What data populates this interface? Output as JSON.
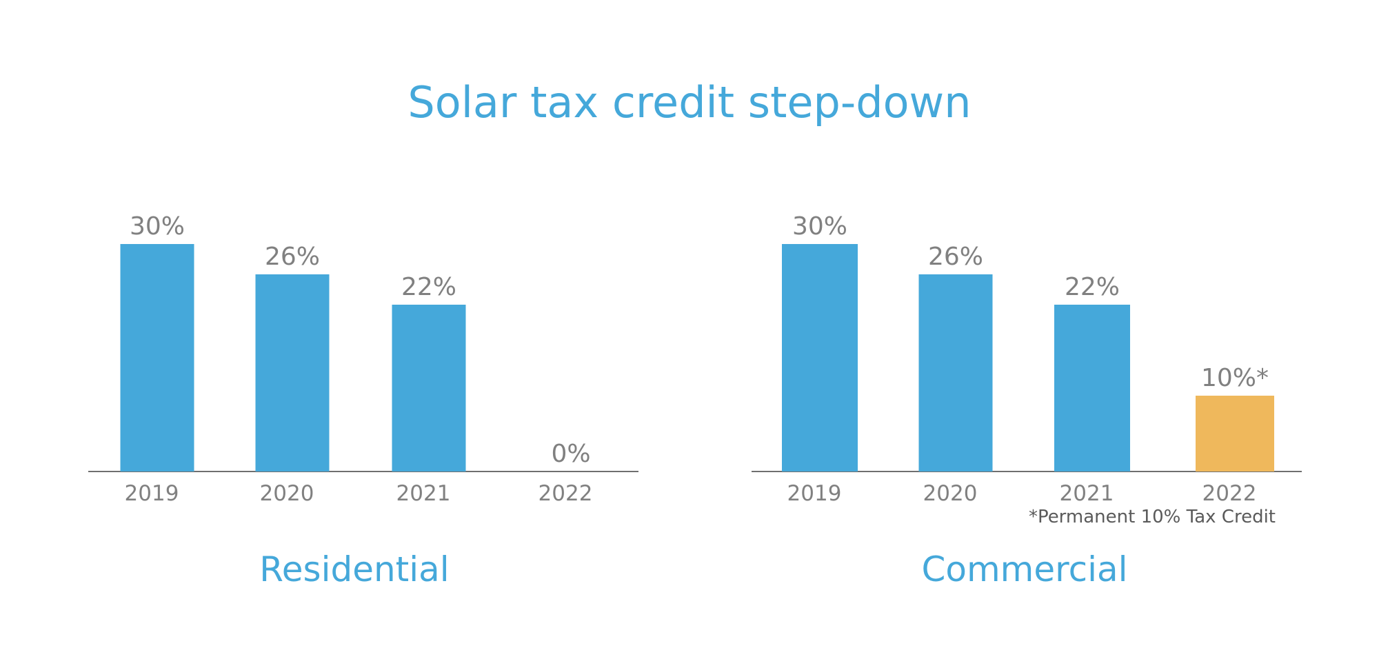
{
  "title": "Solar tax credit step-down",
  "colors": {
    "bar": "#45a8da",
    "highlight": "#efb85c",
    "title": "#45a8da",
    "label": "#808080",
    "footnote": "#5a5a5a",
    "axis": "#6f6f6f"
  },
  "chart_data": [
    {
      "type": "bar",
      "title": "Residential",
      "categories": [
        "2019",
        "2020",
        "2021",
        "2022"
      ],
      "values": [
        30,
        26,
        22,
        0
      ],
      "value_labels": [
        "30%",
        "26%",
        "22%",
        "0%"
      ],
      "highlight_index": -1,
      "ylim": [
        0,
        30
      ],
      "grid": false,
      "footnote": ""
    },
    {
      "type": "bar",
      "title": "Commercial",
      "categories": [
        "2019",
        "2020",
        "2021",
        "2022"
      ],
      "values": [
        30,
        26,
        22,
        10
      ],
      "value_labels": [
        "30%",
        "26%",
        "22%",
        "10%*"
      ],
      "highlight_index": 3,
      "ylim": [
        0,
        30
      ],
      "grid": false,
      "footnote": "*Permanent 10% Tax Credit"
    }
  ]
}
